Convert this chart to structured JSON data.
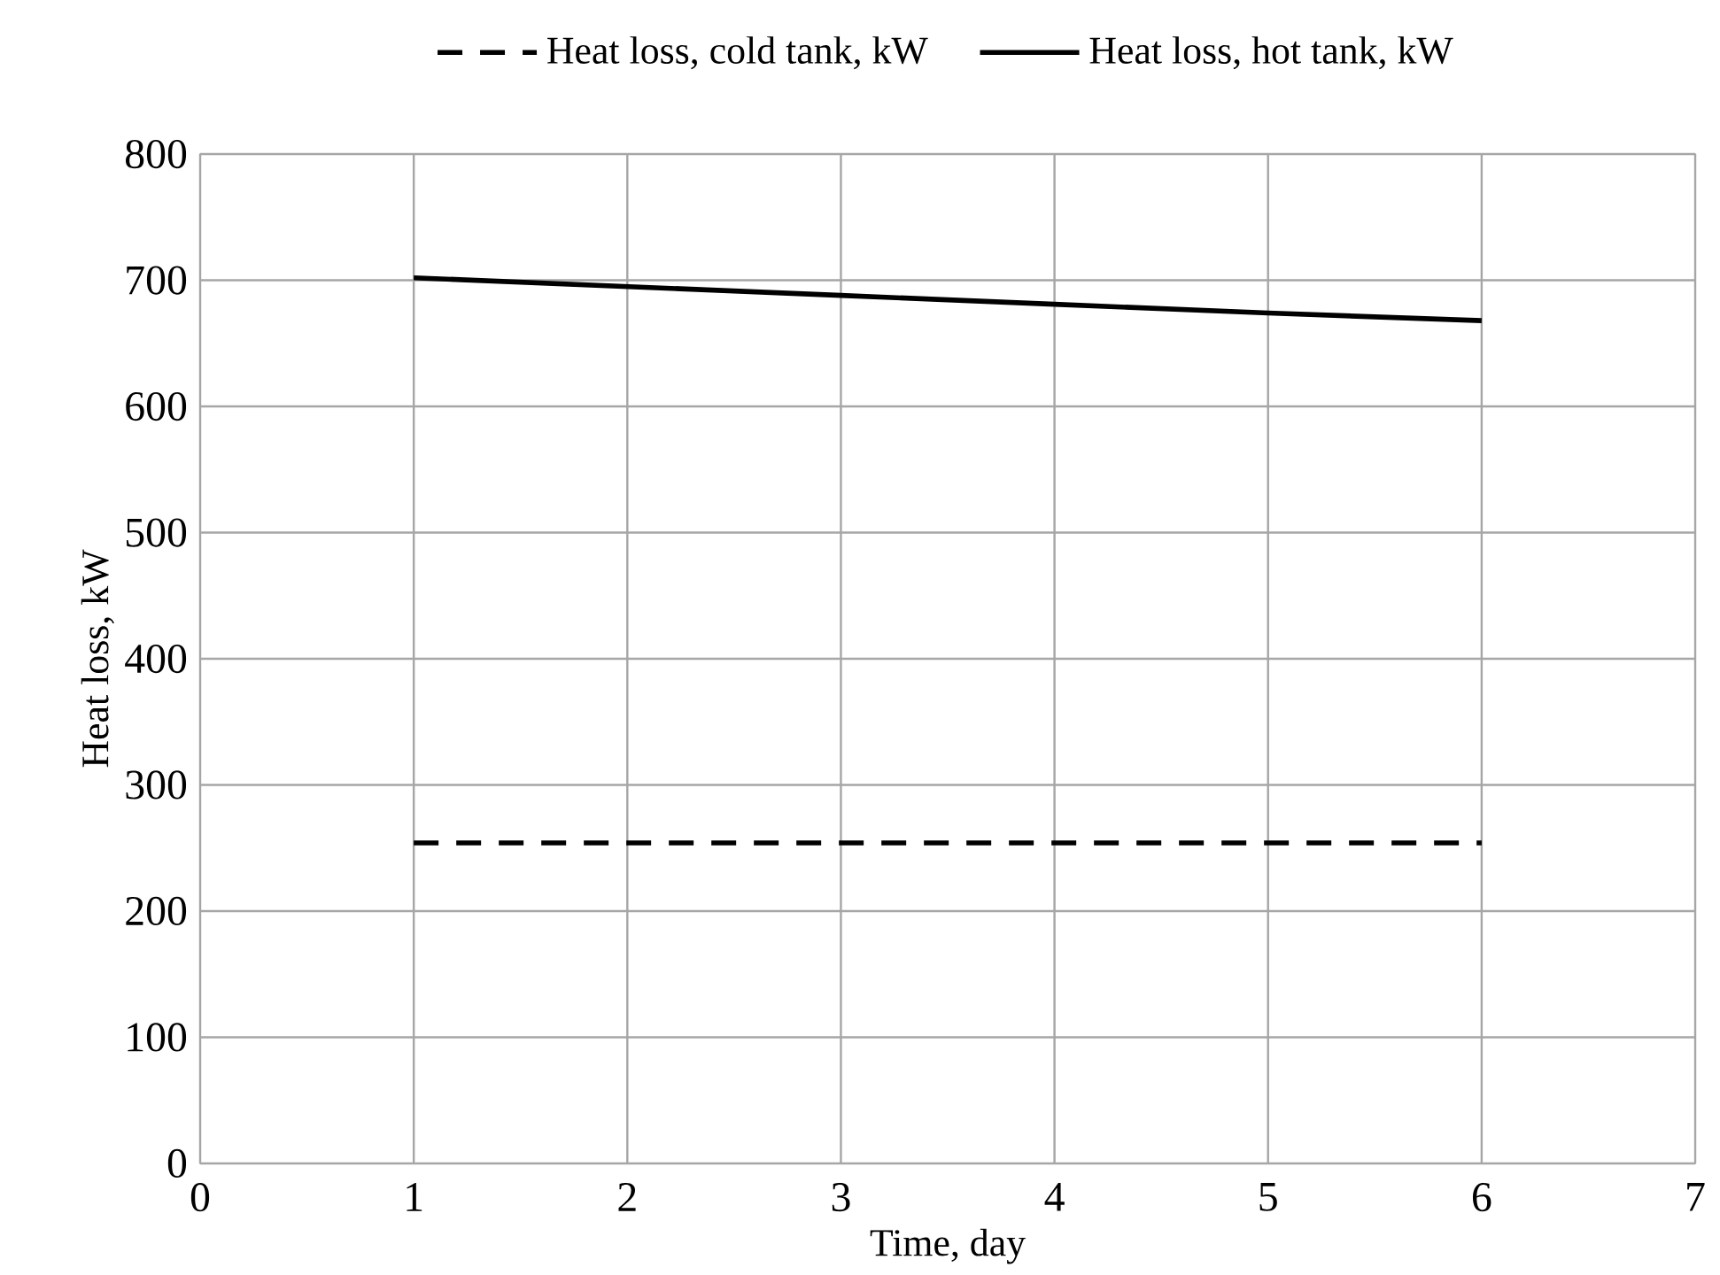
{
  "chart_data": {
    "type": "line",
    "xlabel": "Time, day",
    "ylabel": "Heat loss, kW",
    "x": [
      1,
      2,
      3,
      4,
      5,
      6
    ],
    "series": [
      {
        "name": "Heat loss, cold tank, kW",
        "color": "#000000",
        "line_style": "dashed",
        "values": [
          254,
          254,
          254,
          254,
          254,
          254
        ]
      },
      {
        "name": "Heat loss, hot tank, kW",
        "color": "#000000",
        "line_style": "solid",
        "values": [
          702,
          695,
          688,
          681,
          674,
          668
        ]
      }
    ],
    "xlim": [
      0,
      7
    ],
    "xticks": [
      0,
      1,
      2,
      3,
      4,
      5,
      6,
      7
    ],
    "ylim": [
      0,
      800
    ],
    "yticks": [
      0,
      100,
      200,
      300,
      400,
      500,
      600,
      700,
      800
    ],
    "grid": true,
    "legend": "top",
    "marker": "none"
  }
}
